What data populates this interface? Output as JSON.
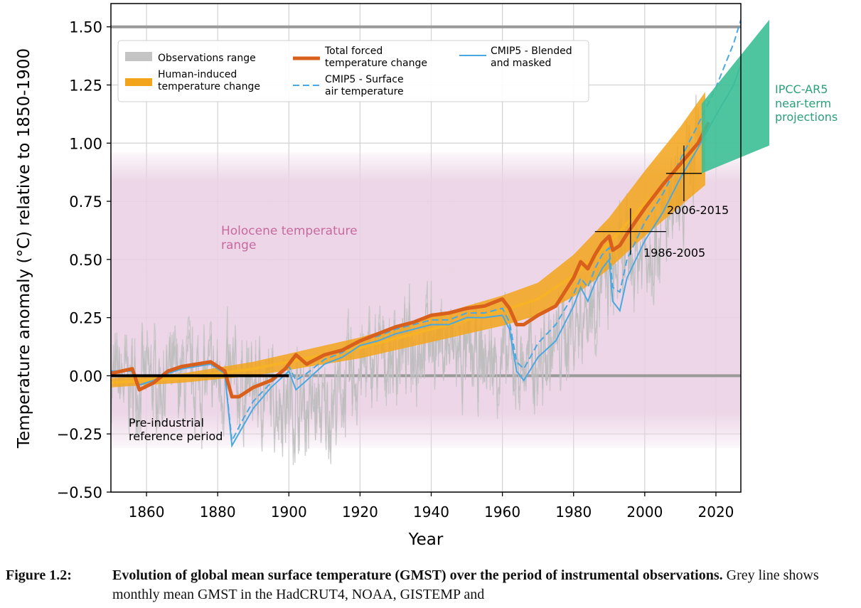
{
  "chart_data": {
    "type": "line",
    "xlabel": "Year",
    "ylabel": "Temperature anomaly (°C) relative to 1850-1900",
    "xlim": [
      1850,
      2027
    ],
    "ylim": [
      -0.5,
      1.6
    ],
    "x_ticks": [
      1860,
      1880,
      1900,
      1920,
      1940,
      1960,
      1980,
      2000,
      2020
    ],
    "y_ticks": [
      -0.5,
      -0.25,
      0.0,
      0.25,
      0.5,
      0.75,
      1.0,
      1.25,
      1.5
    ],
    "x_tick_labels": [
      "1860",
      "1880",
      "1900",
      "1920",
      "1940",
      "1960",
      "1980",
      "2000",
      "2020"
    ],
    "y_tick_labels": [
      "−0.50",
      "−0.25",
      "0.00",
      "0.25",
      "0.50",
      "0.75",
      "1.00",
      "1.25",
      "1.50"
    ],
    "grid": true,
    "legend_location": "top-left",
    "legend": [
      {
        "key": "obs",
        "label": "Observations range",
        "style": "grey-band",
        "color": "#c0c0c0"
      },
      {
        "key": "human",
        "label": "Human-induced temperature change",
        "style": "band",
        "color": "#f0a418"
      },
      {
        "key": "total",
        "label": "Total forced temperature change",
        "style": "thick-line",
        "color": "#d6601c"
      },
      {
        "key": "cmip_sat",
        "label": "CMIP5 - Surface air temperature",
        "style": "dashed-line",
        "color": "#4aa8e0"
      },
      {
        "key": "cmip_blend",
        "label": "CMIP5 - Blended and masked",
        "style": "line",
        "color": "#4aa8e0"
      }
    ],
    "holocene_range": {
      "label": "Holocene temperature range",
      "low": -0.25,
      "high": 0.92,
      "color": "#e8c3dc"
    },
    "reference_lines": [
      0.0,
      1.5
    ],
    "preindustrial_period": {
      "label": "Pre-industrial reference period",
      "x0": 1850,
      "x1": 1900,
      "y": 0.0
    },
    "crosshairs": [
      {
        "label": "1986-2005",
        "center": [
          1996,
          0.62
        ],
        "x_range": [
          1986,
          2006
        ],
        "y_range": [
          0.52,
          0.72
        ]
      },
      {
        "label": "2006-2015",
        "center": [
          2011,
          0.87
        ],
        "x_range": [
          2006,
          2016
        ],
        "y_range": [
          0.75,
          0.99
        ]
      }
    ],
    "projections": {
      "label": "IPCC-AR5 near-term projections",
      "color": "#3cbf95",
      "x": [
        2016,
        2035
      ],
      "lower": [
        0.87,
        0.99
      ],
      "upper": [
        1.17,
        1.53
      ]
    },
    "series": [
      {
        "key": "total",
        "name": "Total forced temperature change",
        "x": [
          1850,
          1856,
          1858,
          1862,
          1866,
          1870,
          1874,
          1878,
          1882,
          1884,
          1886,
          1890,
          1895,
          1899,
          1902,
          1905,
          1910,
          1915,
          1920,
          1925,
          1930,
          1935,
          1940,
          1945,
          1950,
          1955,
          1960,
          1962,
          1964,
          1966,
          1970,
          1975,
          1980,
          1982,
          1984,
          1986,
          1988,
          1990,
          1991,
          1993,
          1995,
          2000,
          2005,
          2010,
          2015,
          2018
        ],
        "y": [
          0.01,
          0.03,
          -0.06,
          -0.03,
          0.02,
          0.04,
          0.05,
          0.06,
          0.02,
          -0.09,
          -0.09,
          -0.05,
          -0.02,
          0.03,
          0.09,
          0.05,
          0.09,
          0.11,
          0.15,
          0.18,
          0.21,
          0.23,
          0.26,
          0.27,
          0.29,
          0.3,
          0.33,
          0.29,
          0.22,
          0.22,
          0.26,
          0.3,
          0.42,
          0.49,
          0.46,
          0.52,
          0.57,
          0.6,
          0.54,
          0.56,
          0.61,
          0.72,
          0.82,
          0.91,
          1.0,
          1.09
        ]
      },
      {
        "key": "cmip_blend",
        "name": "CMIP5 - Blended and masked",
        "x": [
          1850,
          1856,
          1858,
          1862,
          1866,
          1870,
          1874,
          1878,
          1882,
          1884,
          1887,
          1890,
          1895,
          1900,
          1902,
          1905,
          1910,
          1915,
          1920,
          1925,
          1930,
          1935,
          1940,
          1945,
          1950,
          1955,
          1960,
          1962,
          1964,
          1966,
          1970,
          1975,
          1980,
          1982,
          1984,
          1986,
          1988,
          1990,
          1991,
          1993,
          1995,
          2000,
          2005,
          2010,
          2015,
          2020,
          2025,
          2027
        ],
        "y": [
          0.02,
          0.02,
          -0.04,
          -0.02,
          0.01,
          0.03,
          0.04,
          0.05,
          0.01,
          -0.3,
          -0.22,
          -0.14,
          -0.05,
          0.02,
          -0.06,
          -0.02,
          0.05,
          0.08,
          0.13,
          0.15,
          0.18,
          0.2,
          0.22,
          0.22,
          0.25,
          0.25,
          0.26,
          0.2,
          0.02,
          -0.02,
          0.08,
          0.15,
          0.3,
          0.38,
          0.32,
          0.4,
          0.46,
          0.5,
          0.32,
          0.28,
          0.42,
          0.58,
          0.7,
          0.85,
          0.98,
          1.12,
          1.25,
          1.34
        ]
      },
      {
        "key": "cmip_sat",
        "name": "CMIP5 - Surface air temperature",
        "x": [
          1850,
          1856,
          1858,
          1862,
          1866,
          1870,
          1874,
          1878,
          1882,
          1884,
          1887,
          1890,
          1895,
          1900,
          1902,
          1905,
          1910,
          1915,
          1920,
          1925,
          1930,
          1935,
          1940,
          1945,
          1950,
          1955,
          1960,
          1962,
          1964,
          1966,
          1970,
          1975,
          1980,
          1982,
          1984,
          1986,
          1988,
          1990,
          1991,
          1993,
          1995,
          2000,
          2005,
          2010,
          2015,
          2020,
          2025,
          2027
        ],
        "y": [
          0.02,
          0.02,
          -0.04,
          -0.02,
          0.01,
          0.03,
          0.04,
          0.05,
          0.01,
          -0.28,
          -0.19,
          -0.11,
          -0.03,
          0.04,
          -0.02,
          0.01,
          0.07,
          0.1,
          0.15,
          0.17,
          0.2,
          0.22,
          0.24,
          0.24,
          0.27,
          0.27,
          0.29,
          0.23,
          0.06,
          0.03,
          0.14,
          0.22,
          0.35,
          0.42,
          0.38,
          0.46,
          0.52,
          0.55,
          0.38,
          0.36,
          0.5,
          0.66,
          0.78,
          0.93,
          1.08,
          1.24,
          1.43,
          1.53
        ]
      }
    ],
    "human_band": {
      "name": "Human-induced temperature change",
      "x": [
        1850,
        1860,
        1870,
        1880,
        1890,
        1900,
        1910,
        1920,
        1930,
        1940,
        1950,
        1960,
        1970,
        1980,
        1990,
        2000,
        2010,
        2017
      ],
      "mid": [
        -0.03,
        -0.02,
        -0.01,
        0.01,
        0.03,
        0.06,
        0.09,
        0.12,
        0.16,
        0.2,
        0.24,
        0.28,
        0.33,
        0.43,
        0.57,
        0.74,
        0.9,
        1.02
      ],
      "half_width": [
        0.02,
        0.02,
        0.02,
        0.025,
        0.03,
        0.035,
        0.04,
        0.045,
        0.05,
        0.055,
        0.06,
        0.065,
        0.07,
        0.09,
        0.11,
        0.14,
        0.17,
        0.2
      ]
    },
    "observations_range": {
      "name": "Observations range",
      "x_start": 1850,
      "x_end": 2017,
      "trend_x": [
        1850,
        1880,
        1900,
        1910,
        1920,
        1940,
        1950,
        1960,
        1970,
        1980,
        1990,
        2000,
        2010,
        2016
      ],
      "trend_y": [
        -0.03,
        -0.01,
        -0.1,
        -0.16,
        0.03,
        0.18,
        0.06,
        0.06,
        0.05,
        0.22,
        0.42,
        0.55,
        0.72,
        1.05
      ],
      "amplitude": 0.22
    }
  },
  "annotations": {
    "holocene": [
      "Holocene temperature",
      "range"
    ],
    "preindustrial": [
      "Pre-industrial",
      "reference period"
    ],
    "period_1986": "1986-2005",
    "period_2006": "2006-2015",
    "ipcc": [
      "IPCC-AR5",
      "near-term",
      "projections"
    ]
  },
  "legend_text": {
    "obs": [
      "Observations range"
    ],
    "human": [
      "Human-induced",
      "temperature change"
    ],
    "total": [
      "Total forced",
      "temperature change"
    ],
    "cmip_sat": [
      "CMIP5 - Surface",
      "air temperature"
    ],
    "cmip_blend": [
      "CMIP5 - Blended",
      "and masked"
    ]
  },
  "caption": {
    "label": "Figure 1.2:",
    "title": "Evolution of global mean surface temperature (GMST) over the period of instrumental observations.",
    "text": " Grey line shows monthly mean GMST in the HadCRUT4, NOAA, GISTEMP and"
  },
  "colors": {
    "holocene": "#ead1e4",
    "human": "#f2a51a",
    "total": "#d95f1c",
    "cmip": "#4aa8e0",
    "obs": "#c4c4c4",
    "projection": "#3cbf95",
    "holocene_text": "#c76a9f",
    "ipcc_text": "#2aa07a"
  }
}
